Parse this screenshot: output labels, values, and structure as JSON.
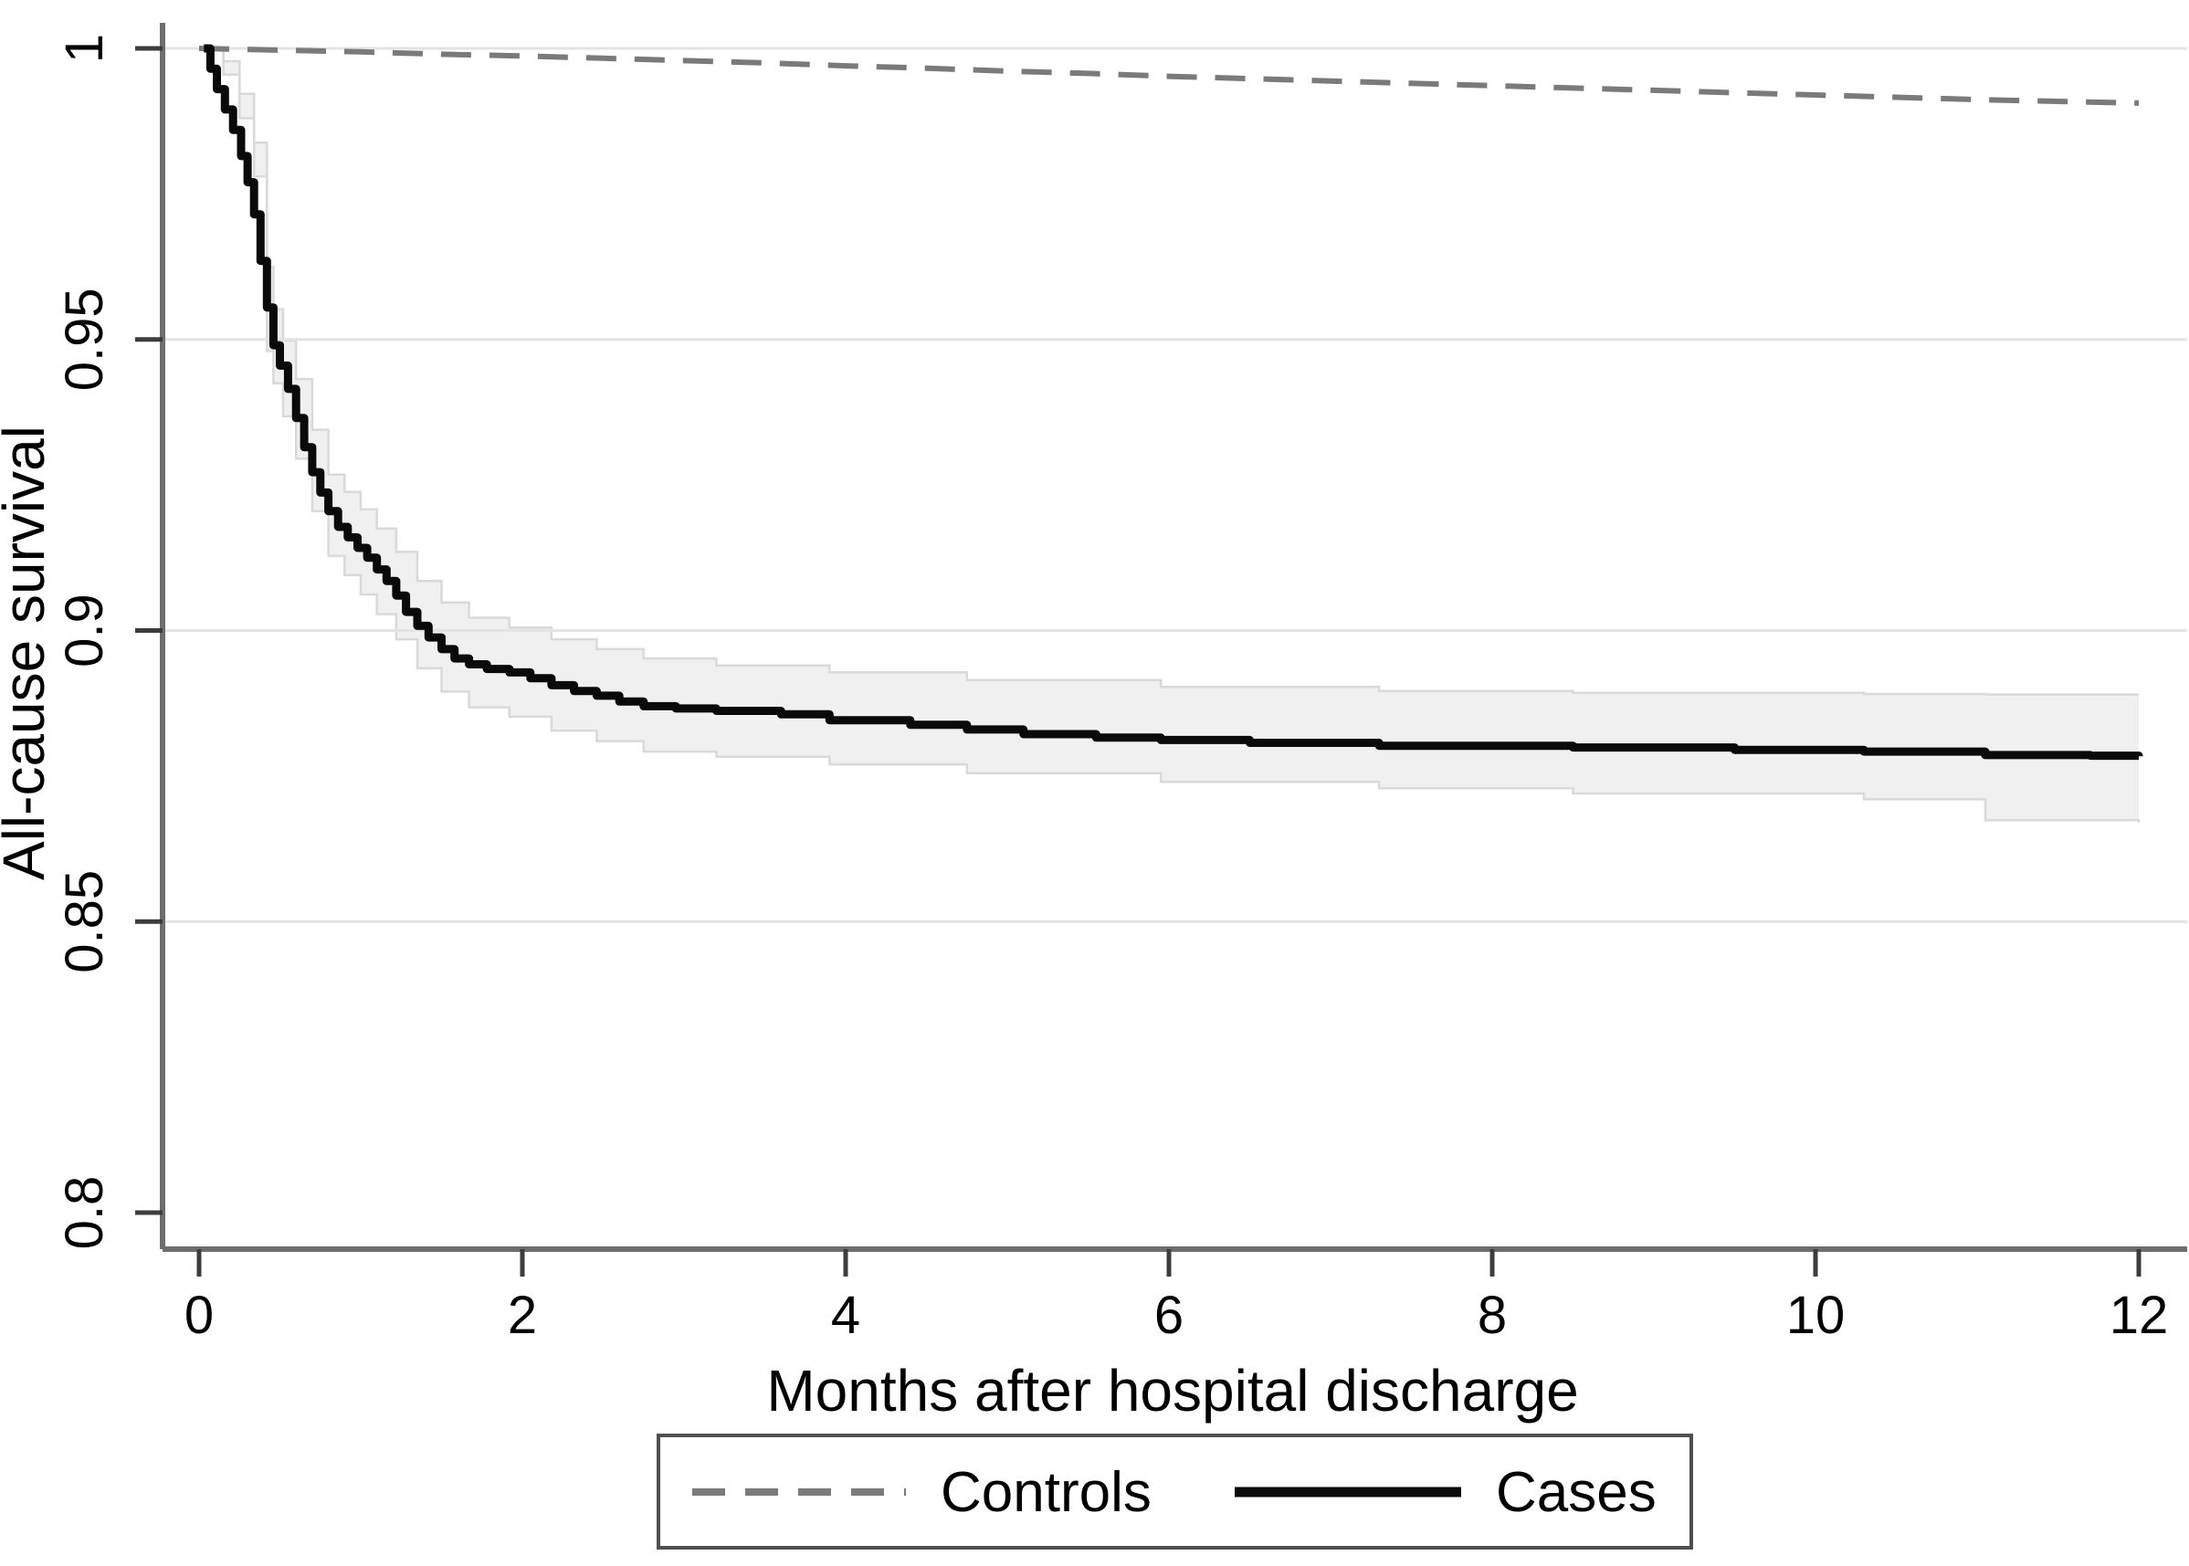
{
  "figure": {
    "kind": "kaplan-meier-survival-plot",
    "background": "#ffffff"
  },
  "axes": {
    "x": {
      "label": "Months after hospital discharge",
      "range": [
        0,
        12
      ],
      "tick_values": [
        0,
        2,
        4,
        6,
        8,
        10,
        12
      ],
      "tick_labels": [
        "0",
        "2",
        "4",
        "6",
        "8",
        "10",
        "12"
      ]
    },
    "y": {
      "label": "All-cause survival",
      "range": [
        0.8,
        1.0
      ],
      "ticks": [
        {
          "value": 1.0,
          "label": "1"
        },
        {
          "value": 0.95,
          "label": "0.95"
        },
        {
          "value": 0.9,
          "label": "0.9"
        },
        {
          "value": 0.85,
          "label": "0.85"
        },
        {
          "value": 0.8,
          "label": "0.8"
        }
      ],
      "gridline_values": [
        1.0,
        0.95,
        0.9,
        0.85
      ]
    }
  },
  "legend": {
    "entries": [
      {
        "label": "Controls",
        "style": "dashed",
        "color": "#7a7a7a"
      },
      {
        "label": "Cases",
        "style": "solid",
        "color": "#0a0a0a"
      }
    ]
  },
  "colors": {
    "axis_line": "#6e6e6e",
    "tick_mark": "#3c3c3c",
    "gridline": "#e3e3e3",
    "controls_line": "#7a7a7a",
    "cases_line": "#0a0a0a",
    "ci_band_fill": "#f0f0f0",
    "ci_band_edge": "#d9d9d9",
    "legend_border": "#4f4f4f",
    "text": "#000000"
  },
  "chart_data": {
    "type": "line",
    "title": "",
    "xlabel": "Months after hospital discharge",
    "ylabel": "All-cause survival",
    "xlim": [
      0,
      12
    ],
    "ylim": [
      0.8,
      1.0
    ],
    "x_ticks": [
      0,
      2,
      4,
      6,
      8,
      10,
      12
    ],
    "y_ticks": [
      1.0,
      0.95,
      0.9,
      0.85,
      0.8
    ],
    "grid": "horizontal-only",
    "legend_position": "bottom",
    "series": [
      {
        "name": "Controls",
        "style": "dashed",
        "step": false,
        "color": "#7a7a7a",
        "points": [
          [
            0,
            1.0
          ],
          [
            0.5,
            0.9997
          ],
          [
            1,
            0.9994
          ],
          [
            1.5,
            0.999
          ],
          [
            2,
            0.9987
          ],
          [
            2.5,
            0.9983
          ],
          [
            3,
            0.9979
          ],
          [
            3.5,
            0.9975
          ],
          [
            4,
            0.997
          ],
          [
            4.5,
            0.9966
          ],
          [
            5,
            0.9961
          ],
          [
            5.5,
            0.9957
          ],
          [
            6,
            0.9952
          ],
          [
            6.5,
            0.9948
          ],
          [
            7,
            0.9944
          ],
          [
            7.5,
            0.994
          ],
          [
            8,
            0.9936
          ],
          [
            8.5,
            0.9932
          ],
          [
            9,
            0.9928
          ],
          [
            9.5,
            0.9924
          ],
          [
            10,
            0.992
          ],
          [
            10.5,
            0.9916
          ],
          [
            11,
            0.9912
          ],
          [
            11.5,
            0.9909
          ],
          [
            12,
            0.9906
          ]
        ]
      },
      {
        "name": "Cases",
        "style": "solid",
        "step": true,
        "color": "#0a0a0a",
        "points": [
          [
            0.03,
            1.0
          ],
          [
            0.07,
            0.9965
          ],
          [
            0.11,
            0.993
          ],
          [
            0.16,
            0.9895
          ],
          [
            0.21,
            0.986
          ],
          [
            0.26,
            0.9815
          ],
          [
            0.3,
            0.977
          ],
          [
            0.34,
            0.9715
          ],
          [
            0.38,
            0.9635
          ],
          [
            0.42,
            0.9555
          ],
          [
            0.46,
            0.949
          ],
          [
            0.5,
            0.9455
          ],
          [
            0.55,
            0.9415
          ],
          [
            0.6,
            0.9365
          ],
          [
            0.65,
            0.9315
          ],
          [
            0.7,
            0.9272
          ],
          [
            0.75,
            0.9237
          ],
          [
            0.8,
            0.9205
          ],
          [
            0.86,
            0.9178
          ],
          [
            0.92,
            0.916
          ],
          [
            0.98,
            0.9142
          ],
          [
            1.04,
            0.9125
          ],
          [
            1.1,
            0.9105
          ],
          [
            1.16,
            0.9085
          ],
          [
            1.22,
            0.906
          ],
          [
            1.28,
            0.9032
          ],
          [
            1.35,
            0.9008
          ],
          [
            1.42,
            0.8988
          ],
          [
            1.5,
            0.8968
          ],
          [
            1.58,
            0.8952
          ],
          [
            1.67,
            0.8942
          ],
          [
            1.78,
            0.8934
          ],
          [
            1.92,
            0.8928
          ],
          [
            2.05,
            0.8918
          ],
          [
            2.18,
            0.8906
          ],
          [
            2.32,
            0.8896
          ],
          [
            2.46,
            0.8888
          ],
          [
            2.6,
            0.8878
          ],
          [
            2.75,
            0.887
          ],
          [
            2.95,
            0.8866
          ],
          [
            3.2,
            0.8862
          ],
          [
            3.6,
            0.8856
          ],
          [
            3.9,
            0.8846
          ],
          [
            4.4,
            0.8838
          ],
          [
            4.75,
            0.883
          ],
          [
            5.1,
            0.8822
          ],
          [
            5.55,
            0.8816
          ],
          [
            5.95,
            0.8812
          ],
          [
            6.5,
            0.8807
          ],
          [
            7.3,
            0.8802
          ],
          [
            8.5,
            0.8799
          ],
          [
            9.5,
            0.8795
          ],
          [
            10.3,
            0.8792
          ],
          [
            11.05,
            0.8786
          ],
          [
            11.7,
            0.8785
          ],
          [
            12,
            0.8784
          ]
        ],
        "ci_fill": "#f0f0f0",
        "ci_upper": [
          [
            0.05,
            1.0
          ],
          [
            0.15,
            0.9978
          ],
          [
            0.25,
            0.9922
          ],
          [
            0.34,
            0.9838
          ],
          [
            0.42,
            0.9625
          ],
          [
            0.46,
            0.9552
          ],
          [
            0.52,
            0.9498
          ],
          [
            0.6,
            0.9432
          ],
          [
            0.7,
            0.9345
          ],
          [
            0.8,
            0.9268
          ],
          [
            0.9,
            0.9238
          ],
          [
            1.0,
            0.9208
          ],
          [
            1.1,
            0.9175
          ],
          [
            1.22,
            0.9135
          ],
          [
            1.35,
            0.9085
          ],
          [
            1.5,
            0.9048
          ],
          [
            1.67,
            0.9022
          ],
          [
            1.92,
            0.9005
          ],
          [
            2.18,
            0.8985
          ],
          [
            2.46,
            0.8968
          ],
          [
            2.75,
            0.8952
          ],
          [
            3.2,
            0.894
          ],
          [
            3.9,
            0.8928
          ],
          [
            4.75,
            0.8915
          ],
          [
            5.95,
            0.8903
          ],
          [
            7.3,
            0.8896
          ],
          [
            8.5,
            0.8893
          ],
          [
            10.3,
            0.8891
          ],
          [
            11.05,
            0.889
          ],
          [
            12,
            0.889
          ]
        ],
        "ci_lower": [
          [
            0.05,
            1.0
          ],
          [
            0.15,
            0.9955
          ],
          [
            0.25,
            0.988
          ],
          [
            0.34,
            0.978
          ],
          [
            0.42,
            0.948
          ],
          [
            0.46,
            0.9425
          ],
          [
            0.52,
            0.9368
          ],
          [
            0.6,
            0.9295
          ],
          [
            0.7,
            0.9205
          ],
          [
            0.8,
            0.9128
          ],
          [
            0.9,
            0.9095
          ],
          [
            1.0,
            0.9062
          ],
          [
            1.1,
            0.9028
          ],
          [
            1.22,
            0.8985
          ],
          [
            1.35,
            0.8935
          ],
          [
            1.5,
            0.8895
          ],
          [
            1.67,
            0.8868
          ],
          [
            1.92,
            0.8852
          ],
          [
            2.18,
            0.8828
          ],
          [
            2.46,
            0.881
          ],
          [
            2.75,
            0.8792
          ],
          [
            3.2,
            0.8783
          ],
          [
            3.9,
            0.877
          ],
          [
            4.75,
            0.8755
          ],
          [
            5.95,
            0.874
          ],
          [
            7.3,
            0.8729
          ],
          [
            8.5,
            0.872
          ],
          [
            10.3,
            0.871
          ],
          [
            11.05,
            0.8674
          ],
          [
            12,
            0.867
          ]
        ]
      }
    ]
  }
}
